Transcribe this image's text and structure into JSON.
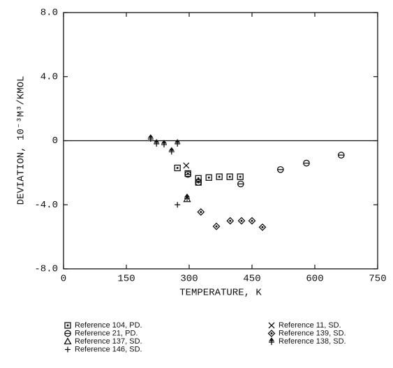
{
  "chart_data": {
    "type": "scatter",
    "xlabel": "TEMPERATURE, K",
    "ylabel": "DEVIATION, 10⁻³M³/KMOL",
    "xlim": [
      0,
      750
    ],
    "ylim": [
      -8,
      8
    ],
    "xticks": [
      0,
      150,
      300,
      450,
      600,
      750
    ],
    "yticks": [
      {
        "value": -8,
        "label": "-8.0"
      },
      {
        "value": -4,
        "label": "-4.0"
      },
      0,
      {
        "value": 4,
        "label": "4.0"
      },
      {
        "value": 8,
        "label": "8.0"
      }
    ],
    "zero_line": true,
    "series": [
      {
        "name": "Reference 104, PD.",
        "marker": "square",
        "color": "#111111",
        "x": [
          272,
          297,
          322,
          322,
          347,
          372,
          397,
          422
        ],
        "values": [
          -1.7,
          -2.05,
          -2.6,
          -2.35,
          -2.3,
          -2.25,
          -2.25,
          -2.25
        ]
      },
      {
        "name": "Reference 21, PD.",
        "marker": "circle",
        "color": "#111111",
        "x": [
          297,
          322,
          423,
          518,
          580,
          663
        ],
        "values": [
          -2.1,
          -2.6,
          -2.7,
          -1.8,
          -1.4,
          -0.9
        ]
      },
      {
        "name": "Reference 137, SD.",
        "marker": "triangle",
        "color": "#111111",
        "x": [
          295
        ],
        "values": [
          -3.65
        ]
      },
      {
        "name": "Reference 146, SD.",
        "marker": "plus",
        "color": "#111111",
        "x": [
          272
        ],
        "values": [
          -4.0
        ]
      },
      {
        "name": "Reference 11, SD.",
        "marker": "cross",
        "color": "#111111",
        "x": [
          293
        ],
        "values": [
          -1.55
        ]
      },
      {
        "name": "Reference 139, SD.",
        "marker": "diamond",
        "color": "#111111",
        "x": [
          328,
          365,
          398,
          425,
          450,
          475
        ],
        "values": [
          -4.45,
          -5.35,
          -5.0,
          -5.0,
          -5.0,
          -5.4
        ]
      },
      {
        "name": "Reference 138, SD.",
        "marker": "arrowplus",
        "color": "#111111",
        "x": [
          208,
          222,
          240,
          258,
          272,
          295
        ],
        "values": [
          0.15,
          -0.15,
          -0.2,
          -0.65,
          -0.15,
          -3.55
        ]
      }
    ]
  }
}
